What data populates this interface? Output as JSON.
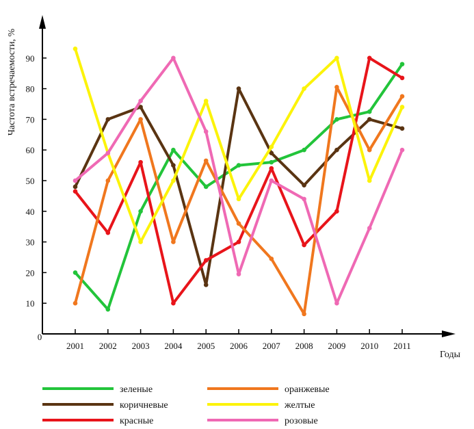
{
  "chart_data": {
    "type": "line",
    "ylabel": "Частота встречаемости, %",
    "xlabel": "Годы",
    "origin_label": "0",
    "x": [
      "2001",
      "2002",
      "2003",
      "2004",
      "2005",
      "2006",
      "2007",
      "2008",
      "2009",
      "2010",
      "2011"
    ],
    "yticks": [
      10,
      20,
      30,
      40,
      50,
      60,
      70,
      80,
      90
    ],
    "ylim": [
      0,
      100
    ],
    "grid": false,
    "legend_position": "bottom",
    "series": [
      {
        "name": "зеленые",
        "color": "#22c43a",
        "values": [
          20,
          8,
          40,
          60,
          48,
          55,
          56,
          60,
          70,
          72.5,
          88
        ]
      },
      {
        "name": "коричневые",
        "color": "#5a3412",
        "values": [
          48,
          70,
          74,
          55,
          16,
          80,
          59,
          48.5,
          60,
          70,
          67
        ]
      },
      {
        "name": "красные",
        "color": "#e8141a",
        "values": [
          46.5,
          33,
          56,
          10,
          24,
          30,
          54,
          29,
          40,
          90,
          83.5
        ]
      },
      {
        "name": "оранжевые",
        "color": "#f0771e",
        "values": [
          10,
          50,
          70,
          30,
          56.5,
          36,
          24.5,
          6.5,
          80.5,
          60,
          77.5
        ]
      },
      {
        "name": "желтые",
        "color": "#fcf30a",
        "values": [
          93,
          59,
          30,
          50,
          76,
          44,
          61,
          80,
          90,
          50,
          74
        ]
      },
      {
        "name": "розовые",
        "color": "#ef69b4",
        "values": [
          50,
          59,
          76,
          90,
          66,
          19.5,
          50,
          44,
          10,
          34.5,
          60
        ]
      }
    ]
  }
}
